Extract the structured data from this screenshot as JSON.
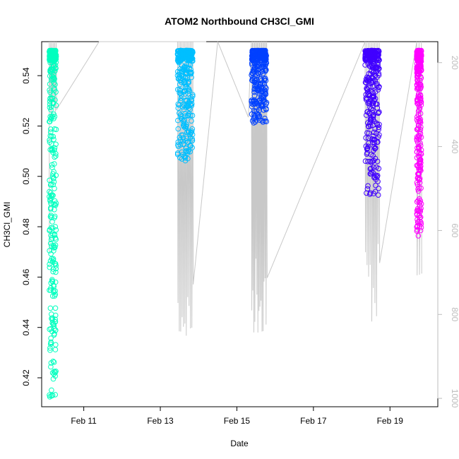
{
  "chart_data": {
    "type": "scatter",
    "title": "ATOM2 Northbound CH3Cl_GMI",
    "xlabel": "Date",
    "ylabel": "CH3Cl_GMI",
    "x_ticks": [
      "Feb 11",
      "Feb 13",
      "Feb 15",
      "Feb 17",
      "Feb 19"
    ],
    "x_tick_values": [
      11,
      13,
      15,
      17,
      19
    ],
    "xlim": [
      9.9,
      20.25
    ],
    "y_ticks": [
      0.42,
      0.44,
      0.46,
      0.48,
      0.5,
      0.52,
      0.54
    ],
    "ylim": [
      0.4085,
      0.5535
    ],
    "right_axis": {
      "label": "",
      "ticks": [
        200,
        400,
        600,
        800,
        1000
      ],
      "ylim": [
        1020,
        150
      ],
      "reversed": true,
      "color": "#bdbdbd"
    },
    "series": [
      {
        "color": "#00ffbf",
        "x_range": [
          10.1,
          10.28
        ],
        "y_range": [
          0.4115,
          0.55
        ]
      },
      {
        "color": "#00bfff",
        "x_range": [
          13.45,
          13.85
        ],
        "y_range": [
          0.5055,
          0.55
        ]
      },
      {
        "color": "#0040ff",
        "x_range": [
          15.38,
          15.78
        ],
        "y_range": [
          0.521,
          0.55
        ]
      },
      {
        "color": "#4000ff",
        "x_range": [
          18.35,
          18.72
        ],
        "y_range": [
          0.4925,
          0.55
        ]
      },
      {
        "color": "#ff00ff",
        "x_range": [
          19.7,
          19.82
        ],
        "y_range": [
          0.4755,
          0.55
        ]
      }
    ]
  }
}
